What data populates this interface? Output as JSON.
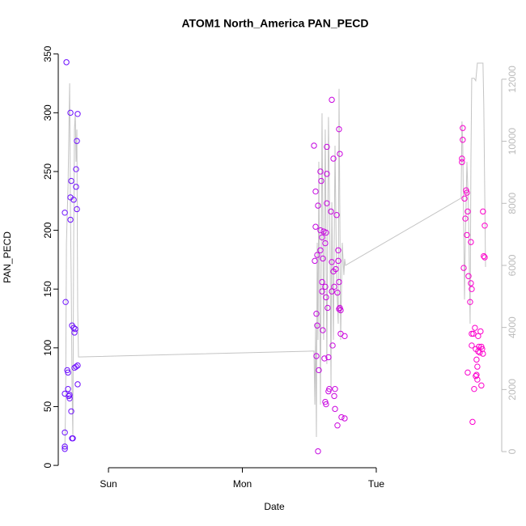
{
  "chart_data": {
    "type": "scatter",
    "title": "ATOM1 North_America PAN_PECD",
    "x_label": "Date",
    "y_label": "PAN_PECD",
    "xlim": [
      0.625,
      3.937
    ],
    "xticks": [
      {
        "value": 1,
        "label": "Sun"
      },
      {
        "value": 2,
        "label": "Mon"
      },
      {
        "value": 3,
        "label": "Tue"
      }
    ],
    "ylim": [
      -2,
      356
    ],
    "yticks": [
      0,
      50,
      100,
      150,
      200,
      250,
      300,
      350
    ],
    "y2lim": [
      -520,
      13040
    ],
    "y2ticks": [
      0,
      2000,
      4000,
      6000,
      8000,
      10000,
      12000
    ],
    "y2_color": "#bbbbbb",
    "series": [
      {
        "type": "scatter",
        "color_range": [
          "#6a0dff",
          "#ff00cc"
        ],
        "x": [
          0.686,
          0.674,
          0.68,
          0.716,
          0.722,
          0.716,
          0.74,
          0.716,
          0.77,
          0.764,
          0.758,
          0.758,
          0.764,
          0.728,
          0.74,
          0.752,
          0.746,
          0.692,
          0.698,
          0.674,
          0.698,
          0.71,
          0.71,
          0.746,
          0.758,
          0.77,
          0.77,
          0.722,
          0.674,
          0.674,
          0.674,
          0.728,
          0.734,
          0.704,
          2.535,
          2.547,
          2.547,
          2.541,
          2.559,
          2.565,
          2.553,
          2.559,
          2.553,
          2.571,
          2.565,
          2.583,
          2.589,
          2.583,
          2.595,
          2.583,
          2.607,
          2.601,
          2.595,
          2.595,
          2.601,
          2.613,
          2.619,
          2.625,
          2.631,
          2.631,
          2.631,
          2.625,
          2.619,
          2.619,
          2.625,
          2.637,
          2.643,
          2.643,
          2.649,
          2.668,
          2.68,
          2.662,
          2.668,
          2.68,
          2.686,
          2.668,
          2.674,
          2.692,
          2.686,
          2.692,
          2.722,
          2.728,
          2.704,
          2.716,
          2.716,
          2.698,
          2.722,
          2.71,
          2.728,
          2.734,
          2.734,
          2.71,
          2.74,
          2.764,
          2.764,
          2.722,
          3.646,
          3.646,
          3.64,
          3.64,
          3.659,
          3.671,
          3.677,
          3.683,
          3.665,
          3.677,
          3.707,
          3.653,
          3.689,
          3.707,
          3.713,
          3.701,
          3.713,
          3.725,
          3.737,
          3.713,
          3.743,
          3.749,
          3.761,
          3.767,
          3.779,
          3.797,
          3.81,
          3.803,
          3.81,
          3.773,
          3.785,
          3.791,
          3.797,
          3.755,
          3.749,
          3.743,
          3.755,
          3.683,
          3.731,
          3.785,
          3.719,
          3.761
        ],
        "values": [
          343,
          215,
          139,
          300,
          242,
          228,
          226,
          209,
          299,
          276,
          252,
          237,
          218,
          119,
          117,
          116,
          113,
          81,
          79,
          61,
          65,
          60,
          57,
          83,
          84,
          85,
          69,
          46,
          28,
          16,
          14,
          23,
          23,
          59,
          272,
          233,
          203,
          174,
          179,
          221,
          129,
          119,
          93,
          81,
          12,
          250,
          242,
          200,
          194,
          183,
          199,
          176,
          156,
          148,
          115,
          91,
          54,
          52,
          271,
          248,
          223,
          198,
          189,
          152,
          143,
          134,
          92,
          63,
          65,
          311,
          261,
          216,
          173,
          165,
          152,
          148,
          102,
          65,
          59,
          48,
          286,
          265,
          213,
          183,
          174,
          167,
          156,
          147,
          134,
          132,
          112,
          34,
          41,
          40,
          110,
          133,
          287,
          277,
          261,
          258,
          227,
          234,
          232,
          216,
          210,
          196,
          190,
          168,
          161,
          155,
          150,
          139,
          112,
          112,
          117,
          102,
          99,
          90,
          110,
          101,
          114,
          216,
          204,
          178,
          177,
          96,
          101,
          99,
          95,
          84,
          77,
          76,
          73,
          79,
          65,
          68,
          37,
          97
        ]
      },
      {
        "type": "line",
        "axis": "y2",
        "color": "#c4c4c4",
        "x": [
          0.674,
          0.68,
          0.686,
          0.698,
          0.71,
          0.716,
          0.722,
          0.728,
          0.734,
          0.74,
          0.746,
          0.752,
          0.758,
          0.764,
          0.77,
          0.776,
          2.535,
          2.541,
          2.547,
          2.553,
          2.559,
          2.565,
          2.571,
          2.583,
          2.595,
          2.607,
          2.619,
          2.631,
          2.643,
          2.656,
          2.662,
          2.668,
          2.68,
          2.692,
          2.704,
          2.716,
          2.722,
          2.734,
          2.746,
          2.758,
          2.764,
          2.77,
          3.634,
          3.64,
          3.646,
          3.653,
          3.659,
          3.665,
          3.677,
          3.689,
          3.695,
          3.701,
          3.707,
          3.713,
          3.725,
          3.731,
          3.743,
          3.755,
          3.797,
          3.803,
          3.816
        ],
        "values": [
          80,
          1500,
          6700,
          8560,
          11870,
          7780,
          5430,
          2040,
          470,
          6730,
          10380,
          10900,
          9340,
          10380,
          4640,
          3050,
          3240,
          1510,
          4120,
          470,
          6730,
          3600,
          9340,
          1510,
          10900,
          3600,
          10380,
          2820,
          10780,
          5950,
          2040,
          8040,
          3600,
          9860,
          5430,
          4120,
          11690,
          3600,
          6730,
          5690,
          6210,
          6000,
          8170,
          10640,
          9860,
          7250,
          4900,
          6730,
          9340,
          7780,
          5950,
          4120,
          9340,
          12030,
          12030,
          12030,
          11950,
          12520,
          12520,
          11170,
          5950
        ]
      }
    ]
  }
}
